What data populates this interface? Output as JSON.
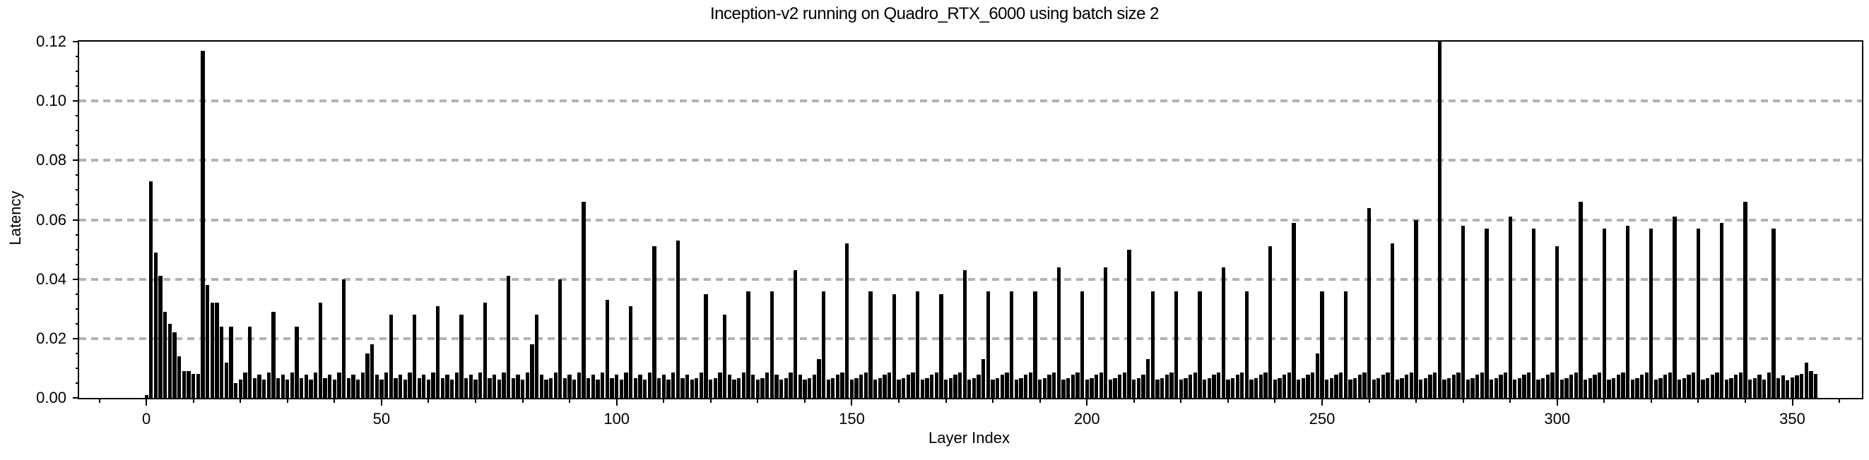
{
  "chart_data": {
    "type": "bar",
    "title": "Inception-v2 running on Quadro_RTX_6000 using batch size 2",
    "xlabel": "Layer Index",
    "ylabel": "Latency",
    "legend": null,
    "grid": "horizontal-dashed",
    "grid_color": "#b3b3b3",
    "bar_color": "#000000",
    "axis_color": "#000000",
    "xlim": [
      -14.3,
      364.8
    ],
    "ylim": [
      0,
      0.12
    ],
    "x_ticks": [
      0,
      50,
      100,
      150,
      200,
      250,
      300,
      350
    ],
    "x_tick_labels": [
      "0",
      "50",
      "100",
      "150",
      "200",
      "250",
      "300",
      "350"
    ],
    "x_minor_tick_step": 10,
    "y_ticks": [
      0,
      0.02,
      0.04,
      0.06,
      0.08,
      0.1,
      0.12
    ],
    "y_tick_labels": [
      "0.00",
      "0.02",
      "0.04",
      "0.06",
      "0.08",
      "0.10",
      "0.12"
    ],
    "y_minor_tick_step": 0.005,
    "bar_width_units": 0.8,
    "x_start_index": 0,
    "values": [
      0.001,
      0.073,
      0.049,
      0.041,
      0.029,
      0.025,
      0.022,
      0.014,
      0.009,
      0.009,
      0.008,
      0.008,
      0.117,
      0.038,
      0.032,
      0.032,
      0.024,
      0.012,
      0.024,
      0.005,
      0.0062,
      0.0085,
      0.024,
      0.0066,
      0.0078,
      0.0062,
      0.0085,
      0.029,
      0.0066,
      0.0078,
      0.0062,
      0.0085,
      0.024,
      0.0066,
      0.0078,
      0.0062,
      0.0085,
      0.032,
      0.0066,
      0.0078,
      0.0062,
      0.0085,
      0.04,
      0.0066,
      0.0078,
      0.0062,
      0.0085,
      0.015,
      0.018,
      0.0078,
      0.0062,
      0.0085,
      0.028,
      0.0066,
      0.0078,
      0.0062,
      0.0085,
      0.028,
      0.0066,
      0.0078,
      0.0062,
      0.0085,
      0.031,
      0.0066,
      0.0078,
      0.0062,
      0.0085,
      0.028,
      0.0066,
      0.0078,
      0.0062,
      0.0085,
      0.032,
      0.0066,
      0.0078,
      0.0062,
      0.0085,
      0.041,
      0.0066,
      0.0078,
      0.0062,
      0.0085,
      0.018,
      0.028,
      0.0078,
      0.0062,
      0.0066,
      0.0085,
      0.04,
      0.0066,
      0.0078,
      0.0062,
      0.0085,
      0.066,
      0.0066,
      0.0078,
      0.0062,
      0.0085,
      0.033,
      0.0066,
      0.0078,
      0.0062,
      0.0085,
      0.031,
      0.0066,
      0.0078,
      0.0062,
      0.0085,
      0.051,
      0.0066,
      0.0078,
      0.0062,
      0.0085,
      0.053,
      0.0066,
      0.0078,
      0.0062,
      0.0066,
      0.0085,
      0.035,
      0.0062,
      0.0066,
      0.0085,
      0.028,
      0.0078,
      0.0062,
      0.0066,
      0.0085,
      0.036,
      0.0078,
      0.0062,
      0.0066,
      0.0085,
      0.036,
      0.0078,
      0.0062,
      0.0066,
      0.0085,
      0.043,
      0.0078,
      0.0062,
      0.0066,
      0.0078,
      0.013,
      0.036,
      0.0062,
      0.0066,
      0.0078,
      0.0085,
      0.052,
      0.0062,
      0.0066,
      0.0078,
      0.0085,
      0.036,
      0.0062,
      0.0066,
      0.0078,
      0.0085,
      0.035,
      0.0062,
      0.0066,
      0.0078,
      0.0085,
      0.036,
      0.0062,
      0.0066,
      0.0078,
      0.0085,
      0.035,
      0.0062,
      0.0066,
      0.0078,
      0.0085,
      0.043,
      0.0062,
      0.0066,
      0.0078,
      0.013,
      0.036,
      0.0062,
      0.0066,
      0.0078,
      0.0085,
      0.036,
      0.0062,
      0.0066,
      0.0078,
      0.0085,
      0.036,
      0.0062,
      0.0066,
      0.0078,
      0.0085,
      0.044,
      0.0062,
      0.0066,
      0.0078,
      0.0085,
      0.036,
      0.0062,
      0.0066,
      0.0078,
      0.0085,
      0.044,
      0.0062,
      0.0066,
      0.0078,
      0.0085,
      0.05,
      0.0062,
      0.0066,
      0.0078,
      0.013,
      0.036,
      0.0062,
      0.0066,
      0.0078,
      0.0085,
      0.036,
      0.0062,
      0.0066,
      0.0078,
      0.0085,
      0.036,
      0.0062,
      0.0066,
      0.0078,
      0.0085,
      0.044,
      0.0062,
      0.0066,
      0.0078,
      0.0085,
      0.036,
      0.0062,
      0.0066,
      0.0078,
      0.0085,
      0.051,
      0.0062,
      0.0066,
      0.0078,
      0.0085,
      0.059,
      0.0062,
      0.0066,
      0.0078,
      0.0085,
      0.015,
      0.036,
      0.0062,
      0.0066,
      0.0078,
      0.0085,
      0.036,
      0.0062,
      0.0066,
      0.0078,
      0.0085,
      0.064,
      0.0062,
      0.0066,
      0.0078,
      0.0085,
      0.052,
      0.0062,
      0.0066,
      0.0078,
      0.0085,
      0.06,
      0.0062,
      0.0066,
      0.0078,
      0.0085,
      0.12,
      0.0062,
      0.0066,
      0.0078,
      0.0085,
      0.058,
      0.0062,
      0.0066,
      0.0078,
      0.0085,
      0.057,
      0.0062,
      0.0066,
      0.0078,
      0.0085,
      0.061,
      0.0062,
      0.0066,
      0.0078,
      0.0085,
      0.057,
      0.0062,
      0.0066,
      0.0078,
      0.0085,
      0.051,
      0.0062,
      0.0066,
      0.0078,
      0.0085,
      0.066,
      0.0062,
      0.0066,
      0.0078,
      0.0085,
      0.057,
      0.0062,
      0.0066,
      0.0078,
      0.0085,
      0.058,
      0.0062,
      0.0066,
      0.0078,
      0.0085,
      0.057,
      0.0062,
      0.0066,
      0.0078,
      0.0085,
      0.061,
      0.0062,
      0.0066,
      0.0078,
      0.0085,
      0.057,
      0.0062,
      0.0066,
      0.0078,
      0.0085,
      0.059,
      0.0062,
      0.0066,
      0.0078,
      0.0085,
      0.066,
      0.0062,
      0.0066,
      0.0078,
      0.0062,
      0.0085,
      0.057,
      0.0066,
      0.0075,
      0.006,
      0.0068,
      0.0075,
      0.008,
      0.012,
      0.009,
      0.008
    ]
  }
}
